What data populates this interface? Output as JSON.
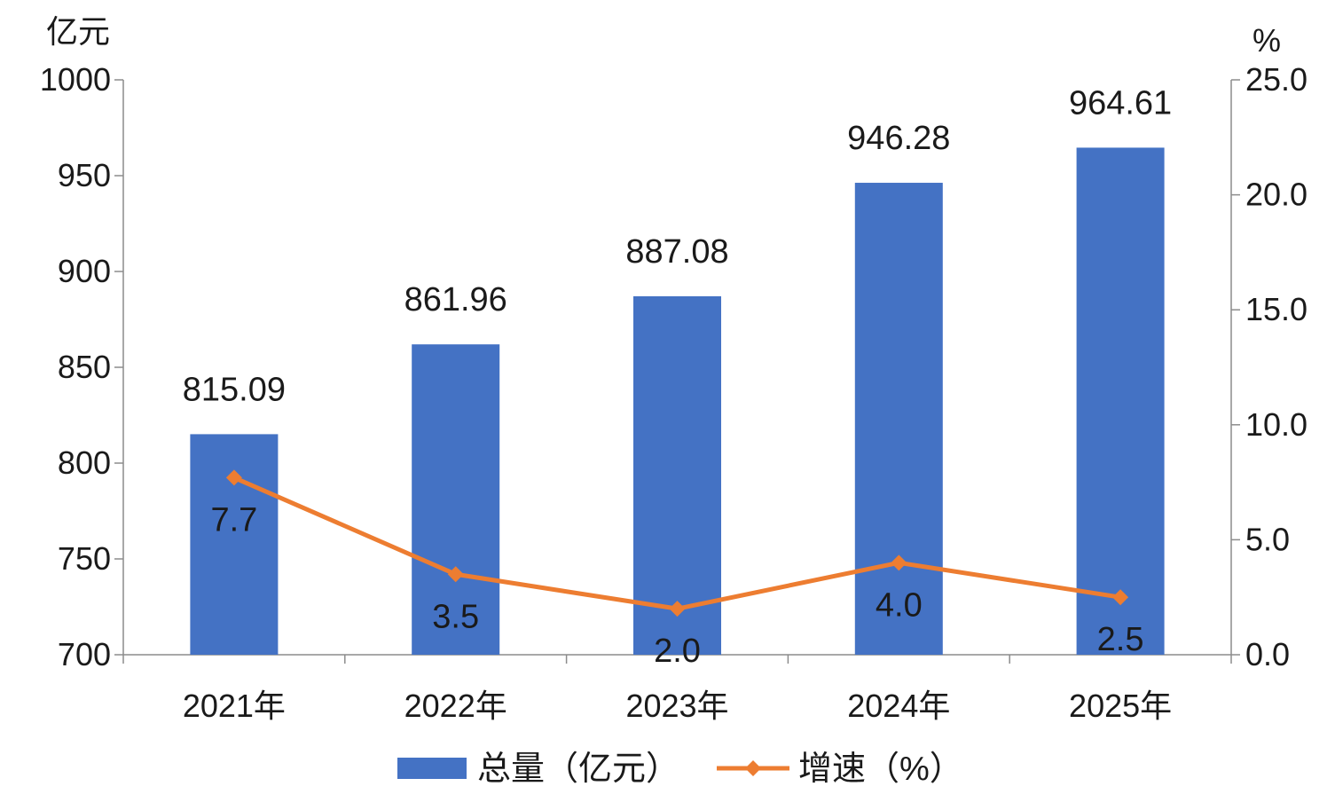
{
  "chart_data": {
    "type": "bar",
    "categories": [
      "2021年",
      "2022年",
      "2023年",
      "2024年",
      "2025年"
    ],
    "series": [
      {
        "name": "总量（亿元）",
        "type": "bar",
        "axis": "left",
        "values": [
          815.09,
          861.96,
          887.08,
          946.28,
          964.61
        ],
        "labels": [
          "815.09",
          "861.96",
          "887.08",
          "946.28",
          "964.61"
        ],
        "color": "#4472C4"
      },
      {
        "name": "增速（%）",
        "type": "line",
        "axis": "right",
        "marker": "diamond",
        "values": [
          7.7,
          3.5,
          2.0,
          4.0,
          2.5
        ],
        "labels": [
          "7.7",
          "3.5",
          "2.0",
          "4.0",
          "2.5"
        ],
        "color": "#ED7D31"
      }
    ],
    "y_left": {
      "unit": "亿元",
      "range": [
        700,
        1000
      ],
      "ticks": [
        "700",
        "750",
        "800",
        "850",
        "900",
        "950",
        "1000"
      ]
    },
    "y_right": {
      "unit": "%",
      "range": [
        0,
        25
      ],
      "ticks": [
        "0.0",
        "5.0",
        "10.0",
        "15.0",
        "20.0",
        "25.0"
      ]
    },
    "grid": false,
    "legend_position": "bottom"
  }
}
